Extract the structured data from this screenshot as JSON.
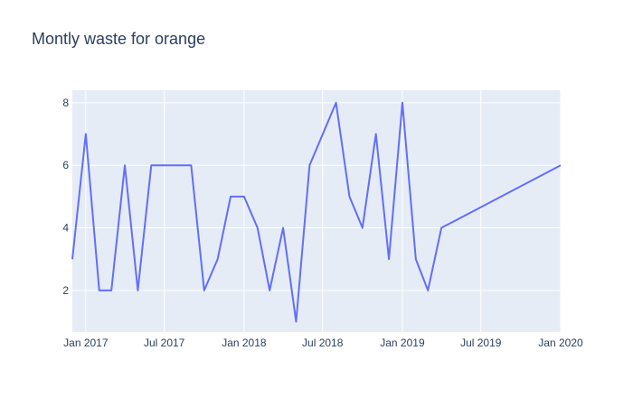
{
  "chart_data": {
    "type": "line",
    "title": "Montly waste for orange",
    "xlabel": "",
    "ylabel": "",
    "x_range": [
      "2016-12-01",
      "2020-01-01"
    ],
    "y_range": [
      0.67,
      8.4
    ],
    "x_ticks": [
      {
        "date": "2017-01-01",
        "label": "Jan 2017"
      },
      {
        "date": "2017-07-01",
        "label": "Jul 2017"
      },
      {
        "date": "2018-01-01",
        "label": "Jan 2018"
      },
      {
        "date": "2018-07-01",
        "label": "Jul 2018"
      },
      {
        "date": "2019-01-01",
        "label": "Jan 2019"
      },
      {
        "date": "2019-07-01",
        "label": "Jul 2019"
      },
      {
        "date": "2020-01-01",
        "label": "Jan 2020"
      }
    ],
    "y_ticks": [
      2,
      4,
      6,
      8
    ],
    "grid": true,
    "colors": {
      "line": "#636efa",
      "plot_bg": "#e5ecf6",
      "grid": "#ffffff",
      "text": "#2a3f5f"
    },
    "series": [
      {
        "x": [
          "2016-12-01",
          "2017-01-01",
          "2017-02-01",
          "2017-03-01",
          "2017-04-01",
          "2017-05-01",
          "2017-06-01",
          "2017-07-01",
          "2017-08-01",
          "2017-09-01",
          "2017-10-01",
          "2017-11-01",
          "2017-12-01",
          "2018-01-01",
          "2018-02-01",
          "2018-03-01",
          "2018-04-01",
          "2018-05-01",
          "2018-06-01",
          "2018-08-01",
          "2018-09-01",
          "2018-10-01",
          "2018-11-01",
          "2018-12-01",
          "2019-01-01",
          "2019-02-01",
          "2019-03-01",
          "2019-04-01",
          "2020-01-01"
        ],
        "y": [
          3,
          7,
          2,
          2,
          6,
          2,
          6,
          6,
          6,
          6,
          2,
          3,
          5,
          5,
          4,
          2,
          4,
          1,
          6,
          8,
          5,
          4,
          7,
          3,
          8,
          3,
          2,
          4,
          6
        ]
      }
    ]
  }
}
